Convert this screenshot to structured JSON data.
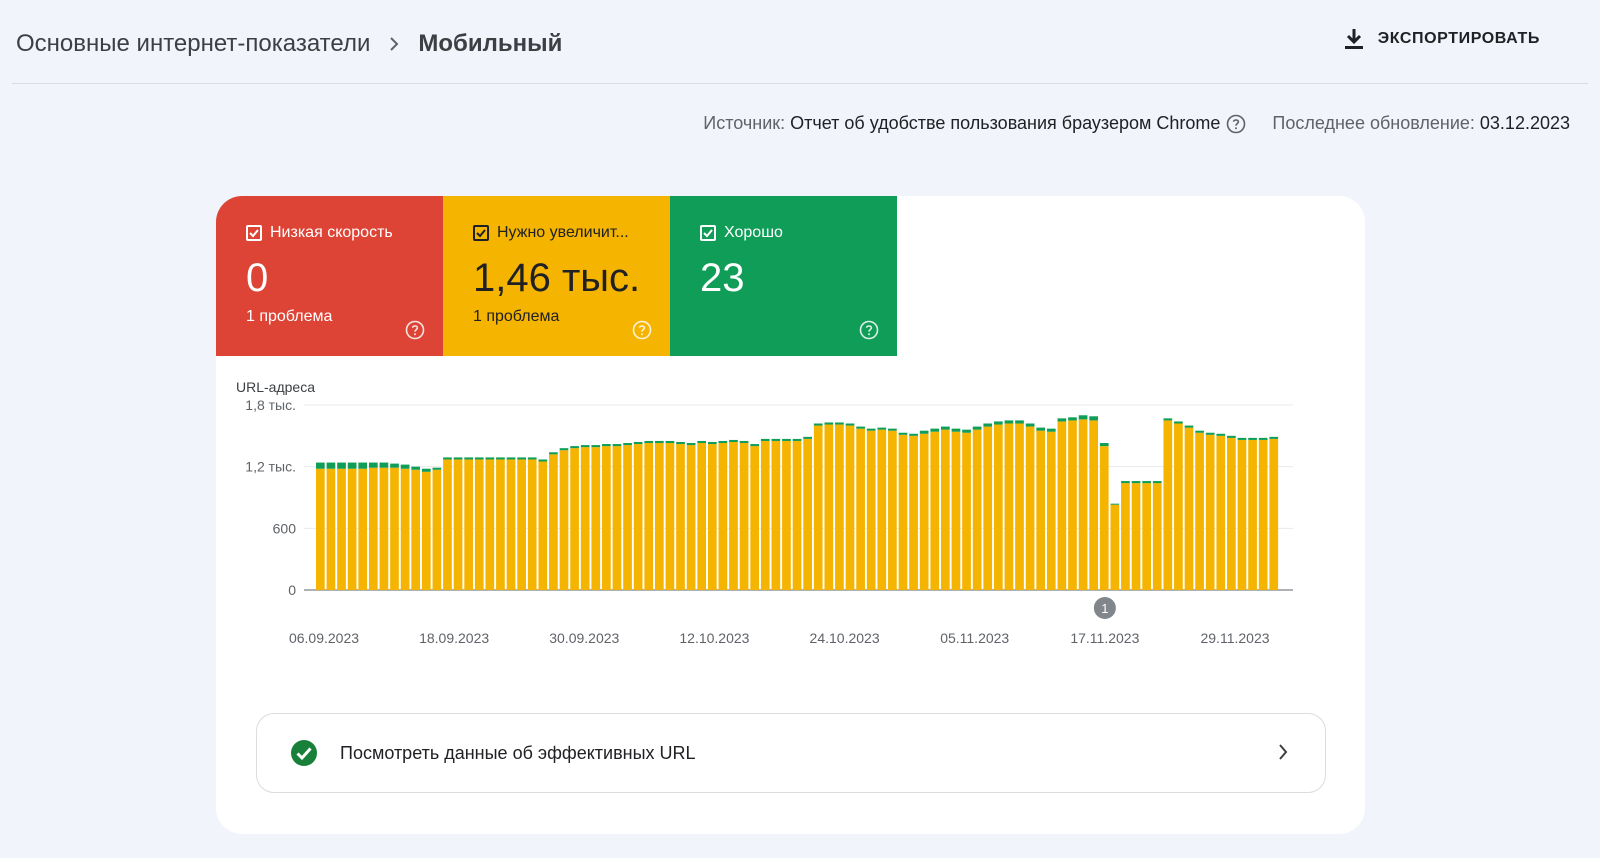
{
  "header": {
    "breadcrumb_parent": "Основные интернет-показатели",
    "breadcrumb_current": "Мобильный",
    "export_label": "ЭКСПОРТИРОВАТЬ"
  },
  "meta": {
    "source_label": "Источник:",
    "source_value": "Отчет об удобстве пользования браузером Chrome",
    "update_label": "Последнее обновление:",
    "update_value": "03.12.2023"
  },
  "tiles": [
    {
      "title": "Низкая скорость",
      "value": "0",
      "sub": "1 проблема",
      "color": "#dd4436"
    },
    {
      "title": "Нужно увеличит...",
      "value": "1,46 тыс.",
      "sub": "1 проблема",
      "color": "#f4b400"
    },
    {
      "title": "Хорошо",
      "value": "23",
      "sub": "",
      "color": "#0f9d58"
    }
  ],
  "good_urls_link": "Посмотреть данные об эффективных URL",
  "chart_data": {
    "type": "bar",
    "stacked": true,
    "ylabel": "URL-адреса",
    "ylim": [
      0,
      1800
    ],
    "yticks": [
      "0",
      "600",
      "1,2 тыс.",
      "1,8 тыс."
    ],
    "ytick_values": [
      0,
      600,
      1200,
      1800
    ],
    "xticks": [
      "06.09.2023",
      "18.09.2023",
      "30.09.2023",
      "12.10.2023",
      "24.10.2023",
      "05.11.2023",
      "17.11.2023",
      "29.11.2023"
    ],
    "annotation": {
      "label": "1",
      "x": "17.11.2023"
    },
    "colors": {
      "needs_improvement": "#f4b400",
      "good": "#0f9d58",
      "poor": "#dd4436"
    },
    "series": [
      {
        "values": [
          1180,
          1180,
          1180,
          1180,
          1180,
          1190,
          1190,
          1190,
          1180,
          1170,
          1150,
          1170,
          1270,
          1270,
          1270,
          1270,
          1270,
          1270,
          1270,
          1270,
          1270,
          1250,
          1320,
          1360,
          1380,
          1390,
          1390,
          1400,
          1400,
          1410,
          1420,
          1430,
          1430,
          1430,
          1420,
          1410,
          1430,
          1420,
          1430,
          1440,
          1430,
          1400,
          1450,
          1450,
          1450,
          1450,
          1470,
          1600,
          1610,
          1610,
          1600,
          1570,
          1550,
          1560,
          1550,
          1510,
          1500,
          1520,
          1540,
          1560,
          1540,
          1530,
          1560,
          1590,
          1610,
          1620,
          1620,
          1590,
          1550,
          1540,
          1640,
          1650,
          1660,
          1650,
          1400,
          830,
          1040,
          1040,
          1040,
          1040,
          1650,
          1620,
          1580,
          1530,
          1510,
          1500,
          1480,
          1460,
          1460,
          1460,
          1470
        ]
      },
      {
        "values": [
          60,
          60,
          60,
          60,
          60,
          50,
          50,
          40,
          40,
          30,
          30,
          20,
          20,
          20,
          20,
          20,
          20,
          20,
          20,
          20,
          20,
          20,
          20,
          20,
          20,
          20,
          20,
          20,
          20,
          20,
          20,
          20,
          20,
          20,
          20,
          20,
          20,
          20,
          20,
          20,
          20,
          20,
          20,
          20,
          20,
          20,
          20,
          20,
          20,
          20,
          20,
          20,
          20,
          20,
          20,
          20,
          20,
          30,
          30,
          30,
          30,
          30,
          30,
          30,
          30,
          30,
          30,
          30,
          30,
          30,
          30,
          30,
          40,
          40,
          30,
          10,
          20,
          20,
          20,
          20,
          20,
          20,
          20,
          20,
          20,
          20,
          20,
          20,
          20,
          20,
          20
        ]
      }
    ]
  }
}
